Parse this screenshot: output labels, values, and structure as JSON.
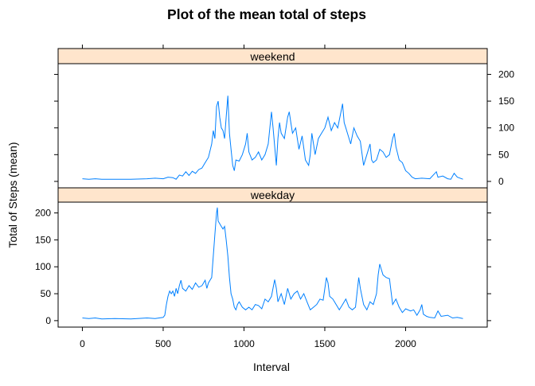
{
  "chart_data": {
    "type": "line",
    "title": "Plot of the mean total of steps",
    "xlabel": "Interval",
    "ylabel": "Total of Steps (mean)",
    "xlim": [
      -150,
      2505
    ],
    "ylim": [
      -12,
      220
    ],
    "x_ticks": [
      0,
      500,
      1000,
      1500,
      2000
    ],
    "y_ticks": [
      0,
      50,
      100,
      150,
      200
    ],
    "line_color": "#0080ff",
    "strip_color": "#ffe5cc",
    "panels": [
      {
        "name": "weekend",
        "points": [
          [
            0,
            5
          ],
          [
            40,
            4
          ],
          [
            80,
            5
          ],
          [
            120,
            4
          ],
          [
            200,
            4
          ],
          [
            300,
            4
          ],
          [
            400,
            5
          ],
          [
            450,
            6
          ],
          [
            500,
            5
          ],
          [
            530,
            8
          ],
          [
            560,
            7
          ],
          [
            580,
            4
          ],
          [
            600,
            12
          ],
          [
            620,
            10
          ],
          [
            640,
            18
          ],
          [
            660,
            11
          ],
          [
            680,
            19
          ],
          [
            700,
            15
          ],
          [
            720,
            22
          ],
          [
            740,
            25
          ],
          [
            760,
            35
          ],
          [
            780,
            45
          ],
          [
            800,
            70
          ],
          [
            810,
            95
          ],
          [
            820,
            80
          ],
          [
            830,
            140
          ],
          [
            840,
            150
          ],
          [
            850,
            120
          ],
          [
            860,
            100
          ],
          [
            870,
            95
          ],
          [
            880,
            80
          ],
          [
            890,
            120
          ],
          [
            900,
            160
          ],
          [
            910,
            90
          ],
          [
            920,
            60
          ],
          [
            930,
            30
          ],
          [
            940,
            20
          ],
          [
            950,
            40
          ],
          [
            970,
            38
          ],
          [
            990,
            50
          ],
          [
            1010,
            70
          ],
          [
            1020,
            90
          ],
          [
            1030,
            55
          ],
          [
            1050,
            40
          ],
          [
            1070,
            45
          ],
          [
            1090,
            55
          ],
          [
            1110,
            40
          ],
          [
            1130,
            50
          ],
          [
            1150,
            70
          ],
          [
            1170,
            130
          ],
          [
            1180,
            100
          ],
          [
            1200,
            30
          ],
          [
            1210,
            80
          ],
          [
            1220,
            110
          ],
          [
            1230,
            90
          ],
          [
            1250,
            80
          ],
          [
            1270,
            120
          ],
          [
            1280,
            130
          ],
          [
            1290,
            110
          ],
          [
            1300,
            90
          ],
          [
            1320,
            100
          ],
          [
            1340,
            60
          ],
          [
            1360,
            85
          ],
          [
            1380,
            40
          ],
          [
            1400,
            30
          ],
          [
            1410,
            50
          ],
          [
            1420,
            90
          ],
          [
            1430,
            70
          ],
          [
            1440,
            50
          ],
          [
            1460,
            80
          ],
          [
            1480,
            90
          ],
          [
            1500,
            100
          ],
          [
            1520,
            120
          ],
          [
            1540,
            95
          ],
          [
            1560,
            110
          ],
          [
            1580,
            100
          ],
          [
            1600,
            130
          ],
          [
            1610,
            145
          ],
          [
            1620,
            110
          ],
          [
            1630,
            100
          ],
          [
            1640,
            90
          ],
          [
            1660,
            70
          ],
          [
            1680,
            100
          ],
          [
            1700,
            85
          ],
          [
            1720,
            75
          ],
          [
            1740,
            30
          ],
          [
            1760,
            50
          ],
          [
            1780,
            70
          ],
          [
            1790,
            40
          ],
          [
            1800,
            35
          ],
          [
            1820,
            40
          ],
          [
            1840,
            60
          ],
          [
            1860,
            55
          ],
          [
            1880,
            45
          ],
          [
            1900,
            50
          ],
          [
            1920,
            80
          ],
          [
            1930,
            90
          ],
          [
            1940,
            65
          ],
          [
            1960,
            40
          ],
          [
            1980,
            35
          ],
          [
            2000,
            20
          ],
          [
            2020,
            15
          ],
          [
            2040,
            8
          ],
          [
            2060,
            5
          ],
          [
            2100,
            6
          ],
          [
            2150,
            5
          ],
          [
            2190,
            18
          ],
          [
            2200,
            8
          ],
          [
            2230,
            10
          ],
          [
            2260,
            5
          ],
          [
            2280,
            4
          ],
          [
            2300,
            15
          ],
          [
            2320,
            8
          ],
          [
            2355,
            4
          ]
        ]
      },
      {
        "name": "weekday",
        "points": [
          [
            0,
            5
          ],
          [
            40,
            4
          ],
          [
            80,
            5
          ],
          [
            120,
            3
          ],
          [
            200,
            4
          ],
          [
            300,
            3
          ],
          [
            400,
            5
          ],
          [
            450,
            4
          ],
          [
            500,
            6
          ],
          [
            510,
            10
          ],
          [
            520,
            30
          ],
          [
            530,
            45
          ],
          [
            540,
            55
          ],
          [
            550,
            50
          ],
          [
            560,
            55
          ],
          [
            570,
            45
          ],
          [
            580,
            60
          ],
          [
            590,
            50
          ],
          [
            600,
            65
          ],
          [
            610,
            75
          ],
          [
            620,
            60
          ],
          [
            640,
            55
          ],
          [
            660,
            65
          ],
          [
            680,
            58
          ],
          [
            700,
            70
          ],
          [
            720,
            62
          ],
          [
            740,
            65
          ],
          [
            760,
            75
          ],
          [
            770,
            60
          ],
          [
            780,
            70
          ],
          [
            790,
            75
          ],
          [
            800,
            80
          ],
          [
            810,
            120
          ],
          [
            820,
            160
          ],
          [
            830,
            200
          ],
          [
            835,
            210
          ],
          [
            840,
            185
          ],
          [
            850,
            180
          ],
          [
            860,
            175
          ],
          [
            870,
            170
          ],
          [
            880,
            175
          ],
          [
            890,
            150
          ],
          [
            900,
            120
          ],
          [
            910,
            80
          ],
          [
            920,
            50
          ],
          [
            930,
            40
          ],
          [
            940,
            25
          ],
          [
            950,
            20
          ],
          [
            960,
            30
          ],
          [
            970,
            35
          ],
          [
            990,
            25
          ],
          [
            1010,
            20
          ],
          [
            1030,
            25
          ],
          [
            1050,
            20
          ],
          [
            1070,
            30
          ],
          [
            1090,
            28
          ],
          [
            1110,
            22
          ],
          [
            1130,
            40
          ],
          [
            1150,
            35
          ],
          [
            1170,
            45
          ],
          [
            1190,
            76
          ],
          [
            1200,
            60
          ],
          [
            1210,
            35
          ],
          [
            1230,
            50
          ],
          [
            1250,
            30
          ],
          [
            1270,
            60
          ],
          [
            1290,
            40
          ],
          [
            1310,
            50
          ],
          [
            1330,
            55
          ],
          [
            1350,
            40
          ],
          [
            1370,
            50
          ],
          [
            1390,
            35
          ],
          [
            1410,
            20
          ],
          [
            1430,
            25
          ],
          [
            1450,
            30
          ],
          [
            1470,
            40
          ],
          [
            1490,
            38
          ],
          [
            1510,
            80
          ],
          [
            1520,
            70
          ],
          [
            1530,
            45
          ],
          [
            1550,
            40
          ],
          [
            1570,
            30
          ],
          [
            1590,
            20
          ],
          [
            1610,
            30
          ],
          [
            1630,
            40
          ],
          [
            1650,
            25
          ],
          [
            1670,
            20
          ],
          [
            1690,
            25
          ],
          [
            1710,
            80
          ],
          [
            1720,
            60
          ],
          [
            1740,
            30
          ],
          [
            1760,
            20
          ],
          [
            1780,
            35
          ],
          [
            1800,
            30
          ],
          [
            1820,
            50
          ],
          [
            1830,
            85
          ],
          [
            1840,
            105
          ],
          [
            1850,
            95
          ],
          [
            1860,
            85
          ],
          [
            1880,
            80
          ],
          [
            1900,
            78
          ],
          [
            1920,
            30
          ],
          [
            1940,
            40
          ],
          [
            1960,
            25
          ],
          [
            1980,
            15
          ],
          [
            2000,
            22
          ],
          [
            2030,
            18
          ],
          [
            2050,
            20
          ],
          [
            2070,
            10
          ],
          [
            2090,
            20
          ],
          [
            2100,
            30
          ],
          [
            2110,
            12
          ],
          [
            2130,
            8
          ],
          [
            2150,
            6
          ],
          [
            2180,
            5
          ],
          [
            2200,
            18
          ],
          [
            2220,
            8
          ],
          [
            2260,
            10
          ],
          [
            2290,
            5
          ],
          [
            2320,
            6
          ],
          [
            2355,
            4
          ]
        ]
      }
    ]
  }
}
